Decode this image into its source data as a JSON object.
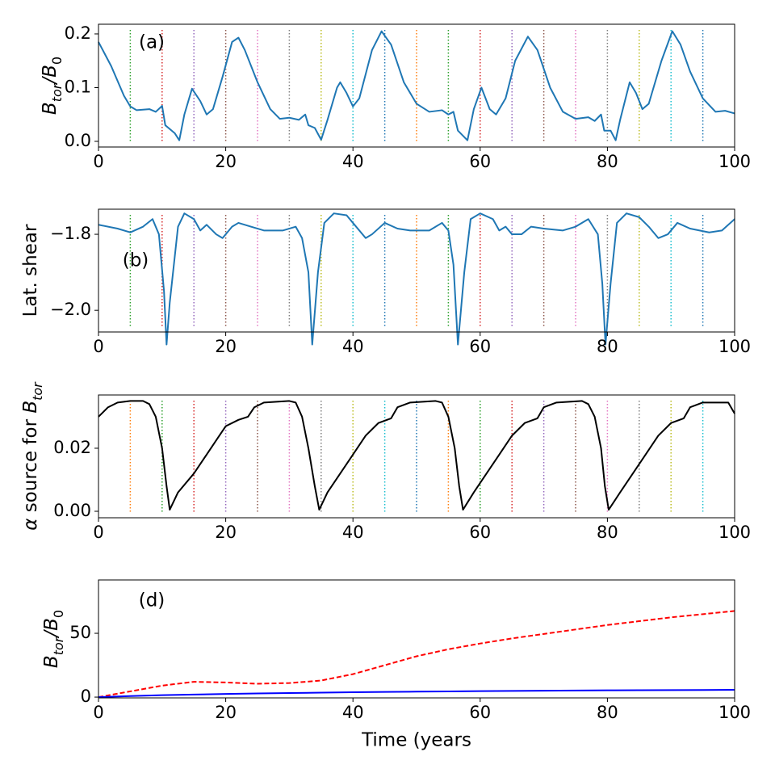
{
  "chart_data": [
    {
      "type": "line",
      "annotation": "(a)",
      "ylabel": [
        {
          "text": "B",
          "italic": true
        },
        {
          "text": "tor",
          "italic": true,
          "sub": true
        },
        {
          "text": "/",
          "italic": true
        },
        {
          "text": "B",
          "italic": true
        },
        {
          "text": "0",
          "sub": true
        }
      ],
      "xlim": [
        0,
        100
      ],
      "xticks": [
        0,
        20,
        40,
        60,
        80,
        100
      ],
      "ylim": [
        -0.0105,
        0.218
      ],
      "yticks": [
        {
          "value": 0,
          "label": "0.0"
        },
        0.1,
        0.2
      ],
      "vlines": {
        "x": [
          5,
          10,
          15,
          20,
          25,
          30,
          35,
          40,
          45,
          50,
          55,
          60,
          65,
          70,
          75,
          80,
          85,
          90,
          95
        ],
        "colors": [
          "#2ca02c",
          "#d62728",
          "#9467bd",
          "#8c564b",
          "#e377c2",
          "#7f7f7f",
          "#bcbd22",
          "#17becf",
          "#1f77b4",
          "#ff7f0e",
          "#2ca02c",
          "#d62728",
          "#9467bd",
          "#8c564b",
          "#e377c2",
          "#7f7f7f",
          "#bcbd22",
          "#17becf",
          "#1f77b4"
        ]
      },
      "x": [
        0,
        2,
        4,
        5,
        6,
        8,
        9,
        10,
        10.5,
        11,
        12,
        12.7,
        13.5,
        14.7,
        16,
        17,
        18,
        19.5,
        21,
        22,
        23,
        25,
        27,
        28.5,
        30,
        31.5,
        32.5,
        33,
        34,
        35,
        36,
        37.5,
        38,
        39,
        40,
        41,
        43,
        44.5,
        46,
        48,
        50,
        52,
        54,
        55,
        55.8,
        56.5,
        58,
        59,
        60.2,
        61.5,
        62.5,
        64,
        65.5,
        67.5,
        69,
        71,
        73,
        75,
        77,
        78,
        79,
        79.5,
        80.5,
        81.3,
        82,
        83.5,
        84.5,
        85.5,
        86.5,
        88.5,
        90.2,
        91.5,
        93,
        95,
        97,
        98.5,
        100
      ],
      "series": [
        {
          "color": "#1f77b4",
          "dash": false,
          "values": [
            0.185,
            0.14,
            0.085,
            0.065,
            0.058,
            0.06,
            0.055,
            0.066,
            0.03,
            0.025,
            0.015,
            0.002,
            0.05,
            0.098,
            0.075,
            0.05,
            0.06,
            0.12,
            0.185,
            0.193,
            0.17,
            0.11,
            0.06,
            0.042,
            0.044,
            0.04,
            0.05,
            0.03,
            0.025,
            0.003,
            0.04,
            0.1,
            0.11,
            0.09,
            0.065,
            0.08,
            0.17,
            0.205,
            0.18,
            0.11,
            0.07,
            0.055,
            0.058,
            0.05,
            0.055,
            0.02,
            0.002,
            0.06,
            0.1,
            0.06,
            0.05,
            0.08,
            0.15,
            0.195,
            0.17,
            0.1,
            0.055,
            0.042,
            0.045,
            0.038,
            0.05,
            0.02,
            0.02,
            0.002,
            0.04,
            0.11,
            0.09,
            0.06,
            0.07,
            0.15,
            0.205,
            0.18,
            0.13,
            0.08,
            0.055,
            0.057,
            0.052
          ]
        }
      ]
    },
    {
      "type": "line",
      "annotation": "(b)",
      "ylabel": [
        {
          "text": "Lat. shear"
        }
      ],
      "xlim": [
        0,
        100
      ],
      "xticks": [
        0,
        20,
        40,
        60,
        80,
        100
      ],
      "ylim": [
        -2.057,
        -1.734
      ],
      "yticks": [
        {
          "value": -2.0,
          "label": "−2.0"
        },
        {
          "value": -1.8,
          "label": "−1.8"
        }
      ],
      "vlines": {
        "x": [
          5,
          10,
          15,
          20,
          25,
          30,
          35,
          40,
          45,
          50,
          55,
          60,
          65,
          70,
          75,
          80,
          85,
          90,
          95
        ],
        "colors": [
          "#2ca02c",
          "#d62728",
          "#9467bd",
          "#8c564b",
          "#e377c2",
          "#7f7f7f",
          "#bcbd22",
          "#17becf",
          "#1f77b4",
          "#ff7f0e",
          "#2ca02c",
          "#d62728",
          "#9467bd",
          "#8c564b",
          "#e377c2",
          "#7f7f7f",
          "#bcbd22",
          "#17becf",
          "#1f77b4"
        ]
      },
      "x": [
        0,
        3,
        5,
        7,
        8.5,
        9.5,
        10.3,
        10.7,
        11.2,
        12.5,
        13.5,
        15,
        16,
        17,
        18.5,
        19.5,
        21,
        22,
        24,
        26,
        29,
        31,
        32,
        33,
        33.6,
        34.5,
        35.5,
        37,
        39,
        40,
        42,
        43,
        45,
        47,
        49,
        52,
        54,
        55,
        55.8,
        56.5,
        57.5,
        58.5,
        60,
        62,
        63,
        64,
        65,
        66.5,
        68,
        70,
        73,
        75,
        77,
        78.5,
        79.2,
        79.7,
        80.5,
        81.5,
        83,
        85,
        86.5,
        88,
        89.5,
        91,
        93,
        96,
        98,
        100
      ],
      "series": [
        {
          "color": "#1f77b4",
          "dash": false,
          "values": [
            -1.775,
            -1.785,
            -1.795,
            -1.78,
            -1.76,
            -1.8,
            -1.95,
            -2.09,
            -1.98,
            -1.78,
            -1.745,
            -1.76,
            -1.79,
            -1.775,
            -1.8,
            -1.81,
            -1.78,
            -1.77,
            -1.78,
            -1.79,
            -1.79,
            -1.78,
            -1.81,
            -1.9,
            -2.09,
            -1.9,
            -1.77,
            -1.745,
            -1.75,
            -1.77,
            -1.81,
            -1.8,
            -1.77,
            -1.785,
            -1.79,
            -1.79,
            -1.77,
            -1.79,
            -1.88,
            -2.09,
            -1.9,
            -1.76,
            -1.745,
            -1.76,
            -1.79,
            -1.78,
            -1.8,
            -1.8,
            -1.78,
            -1.785,
            -1.79,
            -1.78,
            -1.76,
            -1.8,
            -1.93,
            -2.09,
            -1.93,
            -1.77,
            -1.745,
            -1.755,
            -1.78,
            -1.81,
            -1.8,
            -1.77,
            -1.785,
            -1.795,
            -1.79,
            -1.76
          ]
        }
      ]
    },
    {
      "type": "line",
      "ylabel": [
        {
          "text": "α",
          "italic": true
        },
        {
          "text": " source for "
        },
        {
          "text": "B",
          "italic": true
        },
        {
          "text": "tor",
          "italic": true,
          "sub": true
        }
      ],
      "xlim": [
        0,
        100
      ],
      "xticks": [
        0,
        20,
        40,
        60,
        80,
        100
      ],
      "ylim": [
        -0.00205,
        0.0369
      ],
      "yticks": [
        {
          "value": 0,
          "label": "0.00"
        },
        0.02
      ],
      "vlines": {
        "x": [
          5,
          10,
          15,
          20,
          25,
          30,
          35,
          40,
          45,
          50,
          55,
          60,
          65,
          70,
          75,
          80,
          85,
          90,
          95
        ],
        "colors": [
          "#ff7f0e",
          "#2ca02c",
          "#d62728",
          "#9467bd",
          "#8c564b",
          "#e377c2",
          "#7f7f7f",
          "#bcbd22",
          "#17becf",
          "#1f77b4",
          "#ff7f0e",
          "#2ca02c",
          "#d62728",
          "#9467bd",
          "#8c564b",
          "#e377c2",
          "#7f7f7f",
          "#bcbd22",
          "#17becf"
        ]
      },
      "x": [
        0,
        1.5,
        3,
        5,
        7,
        8,
        9,
        10,
        10.7,
        11.2,
        12.5,
        15,
        17,
        19,
        20,
        22,
        23.5,
        24.5,
        26,
        30,
        31,
        32,
        33,
        34,
        34.7,
        36,
        38,
        40,
        42,
        44,
        46,
        47,
        49,
        53,
        54,
        55,
        56,
        56.7,
        57.3,
        59,
        61,
        63,
        65,
        67,
        69,
        70,
        72,
        76,
        77,
        78,
        79,
        79.6,
        80.2,
        82,
        84,
        86,
        88,
        90,
        92,
        93,
        95,
        99,
        100
      ],
      "series": [
        {
          "color": "#000000",
          "dash": false,
          "values": [
            0.03,
            0.033,
            0.0345,
            0.035,
            0.035,
            0.034,
            0.03,
            0.02,
            0.008,
            0.0005,
            0.006,
            0.012,
            0.018,
            0.024,
            0.027,
            0.029,
            0.03,
            0.033,
            0.0345,
            0.035,
            0.0345,
            0.03,
            0.02,
            0.008,
            0.0005,
            0.006,
            0.012,
            0.018,
            0.024,
            0.028,
            0.0295,
            0.033,
            0.0345,
            0.035,
            0.0345,
            0.03,
            0.02,
            0.008,
            0.0005,
            0.006,
            0.012,
            0.018,
            0.024,
            0.028,
            0.0295,
            0.033,
            0.0345,
            0.035,
            0.034,
            0.03,
            0.02,
            0.008,
            0.0005,
            0.006,
            0.012,
            0.018,
            0.024,
            0.028,
            0.0295,
            0.033,
            0.0345,
            0.0345,
            0.031
          ]
        }
      ]
    },
    {
      "type": "line",
      "annotation": "(d)",
      "ylabel": [
        {
          "text": "B",
          "italic": true
        },
        {
          "text": "tor",
          "italic": true,
          "sub": true
        },
        {
          "text": "/",
          "italic": true
        },
        {
          "text": "B",
          "italic": true
        },
        {
          "text": "0",
          "sub": true
        }
      ],
      "xlabel": "Time (years",
      "xlim": [
        0,
        100
      ],
      "xticks": [
        0,
        20,
        40,
        60,
        80,
        100
      ],
      "ylim": [
        -0.6,
        91.8
      ],
      "yticks": [
        0,
        50
      ],
      "x": [
        0,
        5,
        10,
        15,
        20,
        25,
        30,
        35,
        40,
        45,
        50,
        55,
        60,
        65,
        70,
        75,
        80,
        85,
        90,
        95,
        100
      ],
      "series": [
        {
          "color": "#ff0000",
          "dash": true,
          "values": [
            0,
            4.5,
            9,
            12,
            11.5,
            10.5,
            11,
            13,
            18,
            25,
            32,
            37.5,
            42,
            46,
            49.5,
            53,
            56.5,
            59.5,
            62.5,
            65,
            67.5
          ]
        },
        {
          "color": "#0000ff",
          "dash": false,
          "values": [
            0,
            0.8,
            1.5,
            2,
            2.5,
            2.9,
            3.2,
            3.5,
            3.8,
            4.1,
            4.3,
            4.5,
            4.7,
            4.85,
            5,
            5.15,
            5.3,
            5.4,
            5.5,
            5.6,
            5.7
          ]
        }
      ]
    }
  ]
}
